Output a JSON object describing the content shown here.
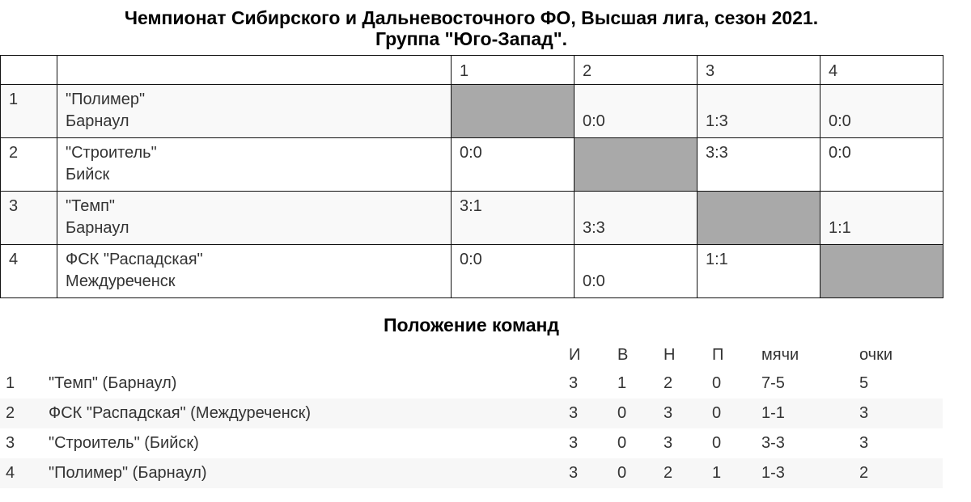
{
  "title": {
    "line1": "Чемпионат Сибирского и Дальневосточного ФО, Высшая лига, сезон 2021.",
    "line2": "Группа \"Юго-Запад\"."
  },
  "cross_table": {
    "columns": [
      "1",
      "2",
      "3",
      "4"
    ],
    "rows": [
      {
        "num": "1",
        "name": "\"Полимер\"",
        "city": "Барнаул",
        "cells": [
          null,
          [
            "",
            "0:0"
          ],
          [
            "",
            "1:3"
          ],
          [
            "",
            "0:0"
          ]
        ]
      },
      {
        "num": "2",
        "name": "\"Строитель\"",
        "city": "Бийск",
        "cells": [
          [
            "0:0",
            ""
          ],
          null,
          [
            "3:3",
            ""
          ],
          [
            "0:0",
            ""
          ]
        ]
      },
      {
        "num": "3",
        "name": "\"Темп\"",
        "city": "Барнаул",
        "cells": [
          [
            "3:1",
            ""
          ],
          [
            "",
            "3:3"
          ],
          null,
          [
            "",
            "1:1"
          ]
        ]
      },
      {
        "num": "4",
        "name": "ФСК \"Распадская\"",
        "city": "Междуреченск",
        "cells": [
          [
            "0:0",
            ""
          ],
          [
            "",
            "0:0"
          ],
          [
            "1:1",
            ""
          ],
          null
        ]
      }
    ],
    "self_cell_color": "#a9a9a9"
  },
  "standings": {
    "title": "Положение команд",
    "headers": [
      "",
      "",
      "И",
      "В",
      "Н",
      "П",
      "мячи",
      "очки"
    ],
    "rows": [
      [
        "1",
        "\"Темп\" (Барнаул)",
        "3",
        "1",
        "2",
        "0",
        "7-5",
        "5"
      ],
      [
        "2",
        "ФСК \"Распадская\" (Междуреченск)",
        "3",
        "0",
        "3",
        "0",
        "1-1",
        "3"
      ],
      [
        "3",
        "\"Строитель\" (Бийск)",
        "3",
        "0",
        "3",
        "0",
        "3-3",
        "3"
      ],
      [
        "4",
        "\"Полимер\" (Барнаул)",
        "3",
        "0",
        "2",
        "1",
        "1-3",
        "2"
      ]
    ]
  }
}
